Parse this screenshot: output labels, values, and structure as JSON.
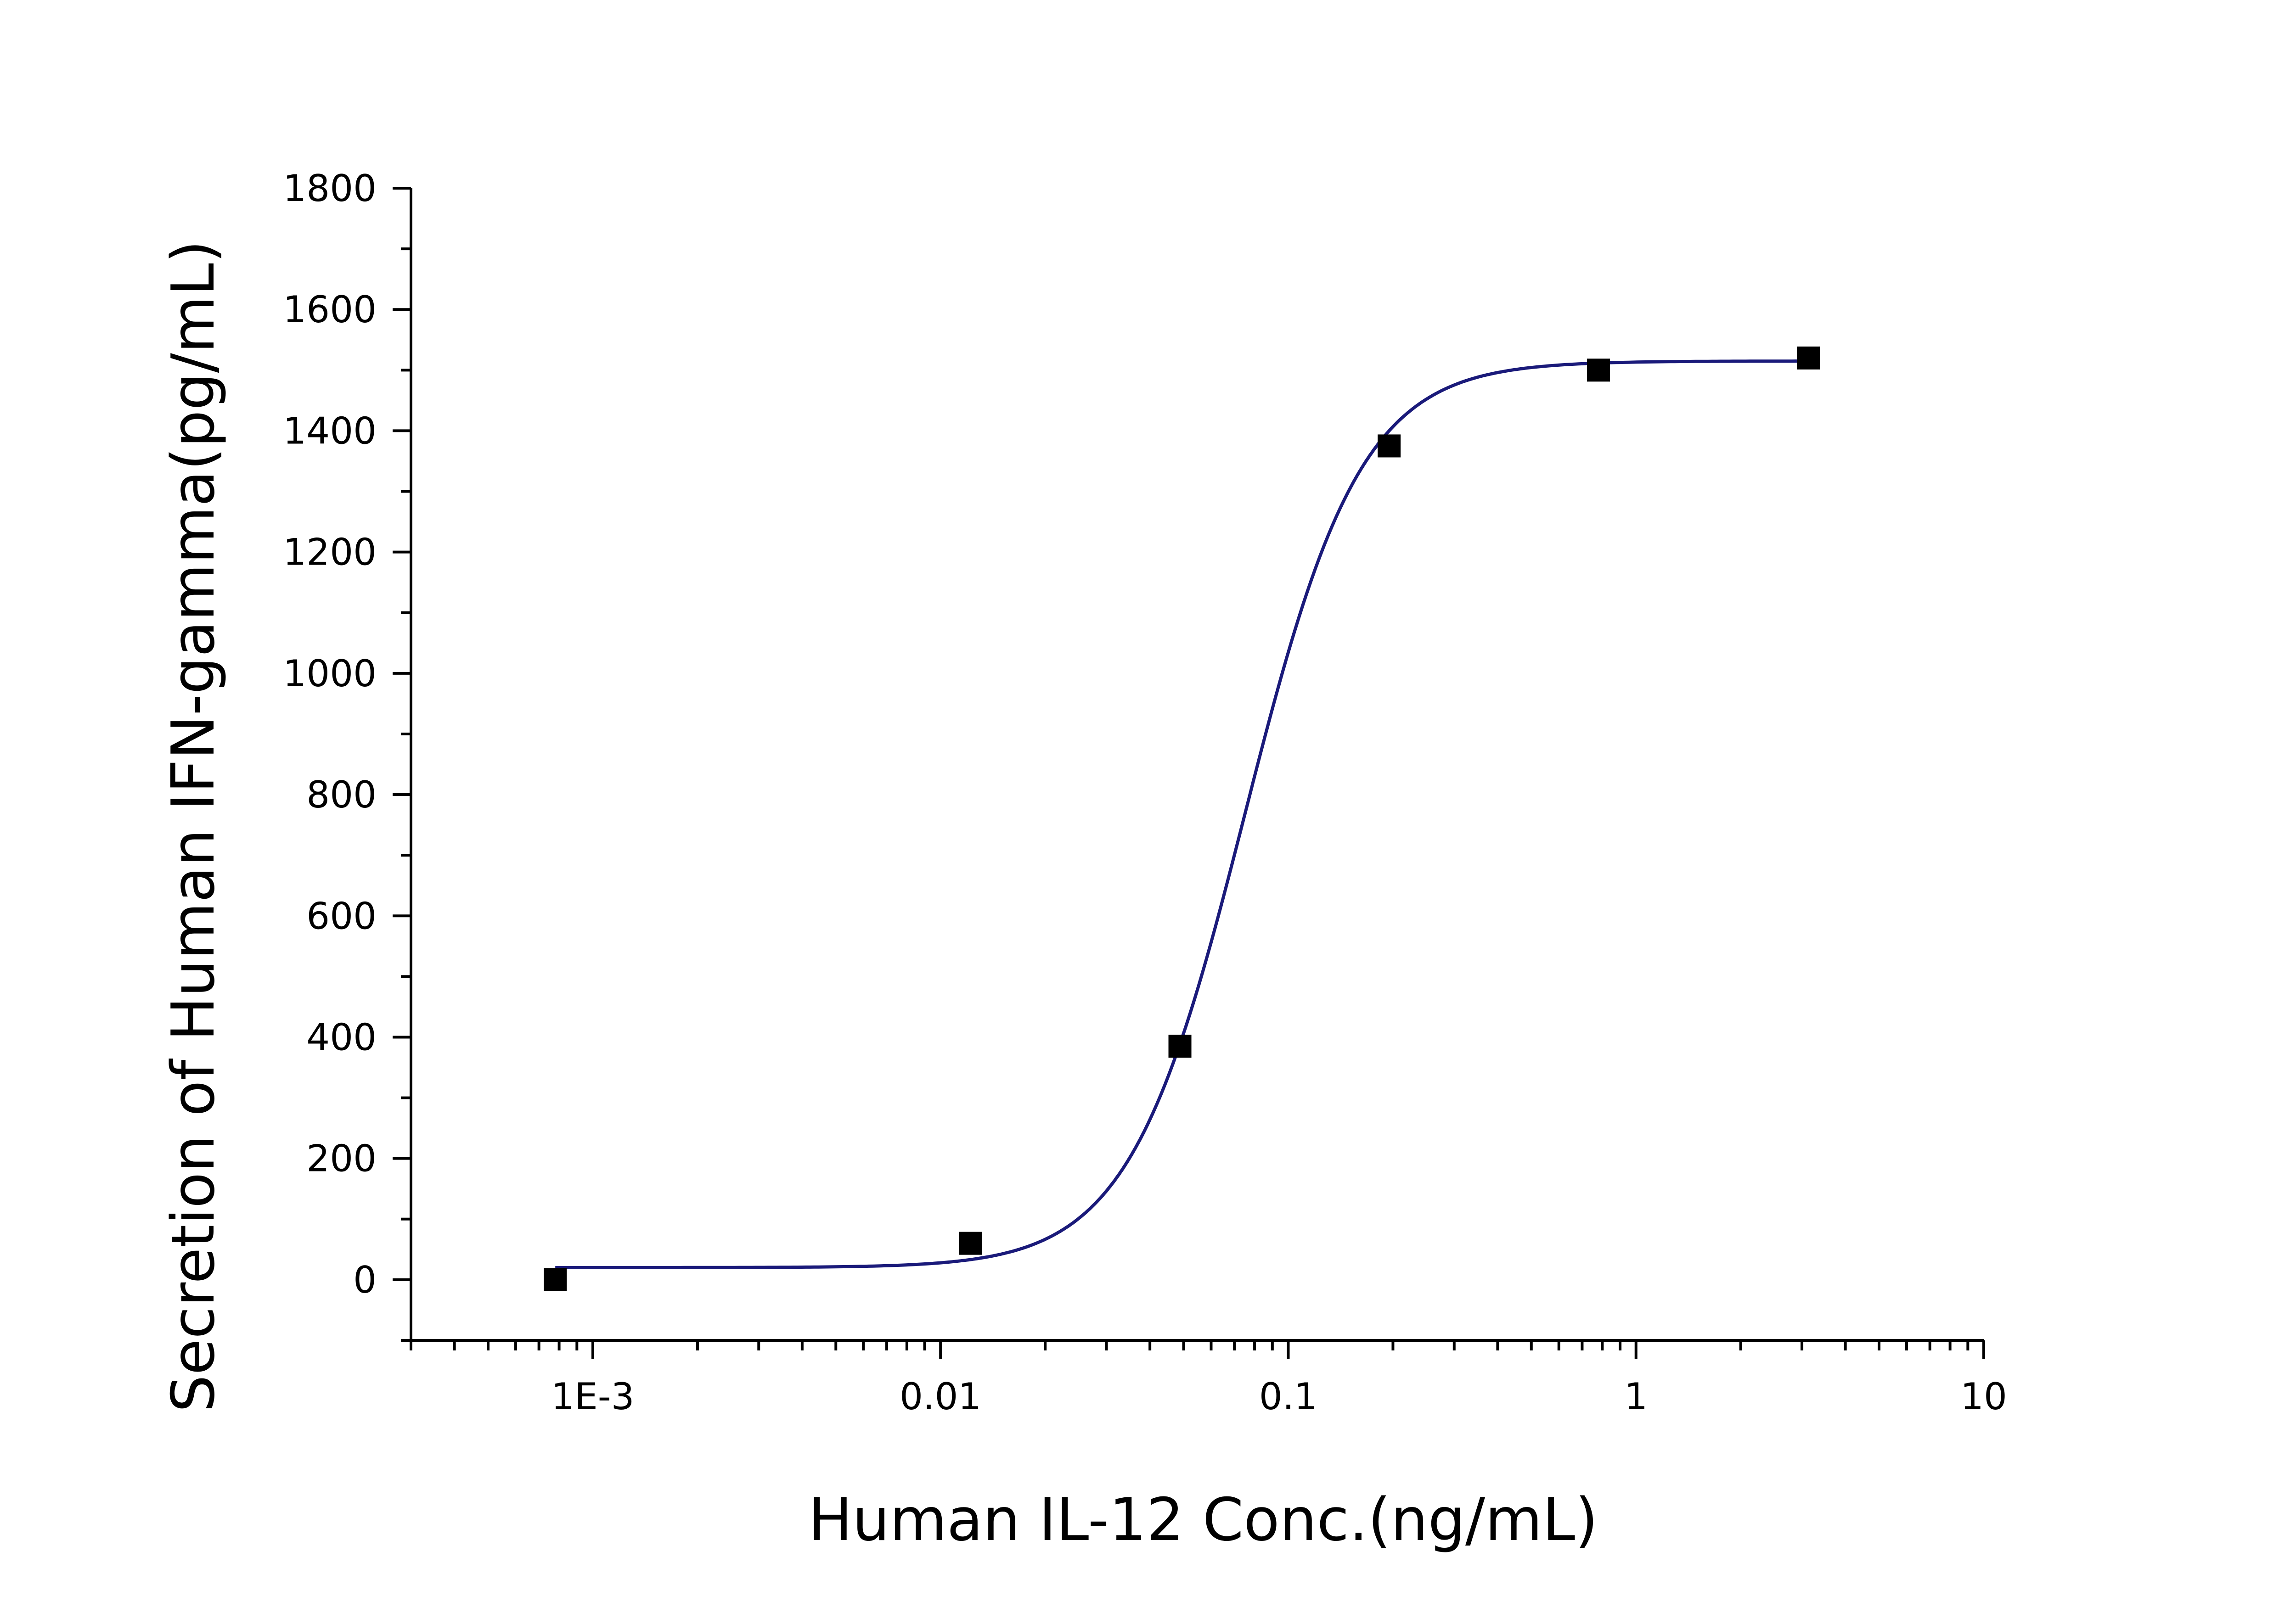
{
  "chart_data": {
    "type": "scatter",
    "title": "",
    "xlabel": "Human IL-12 Conc.(ng/mL)",
    "ylabel": "Secretion of Human IFN-gamma(pg/mL)",
    "x_scale": "log",
    "xlim": [
      0.0003,
      10
    ],
    "ylim": [
      -100,
      1800
    ],
    "x_tick_values": [
      0.001,
      0.01,
      0.1,
      1,
      10
    ],
    "x_tick_labels": [
      "1E-3",
      "0.01",
      "0.1",
      "1",
      "10"
    ],
    "y_tick_values": [
      0,
      200,
      400,
      600,
      800,
      1000,
      1200,
      1400,
      1600,
      1800
    ],
    "y_tick_labels": [
      "0",
      "200",
      "400",
      "600",
      "800",
      "1000",
      "1200",
      "1400",
      "1600",
      "1800"
    ],
    "grid": false,
    "series": [
      {
        "marker": "square",
        "color": "#000000",
        "x": [
          0.00078,
          0.0122,
          0.0488,
          0.195,
          0.78,
          3.13
        ],
        "y": [
          0,
          60,
          385,
          1375,
          1500,
          1520
        ]
      }
    ],
    "fit": {
      "model": "4PL",
      "bottom": 20,
      "top": 1515,
      "ec50": 0.075,
      "hill": 2.6,
      "color": "#1a1a7a"
    }
  }
}
